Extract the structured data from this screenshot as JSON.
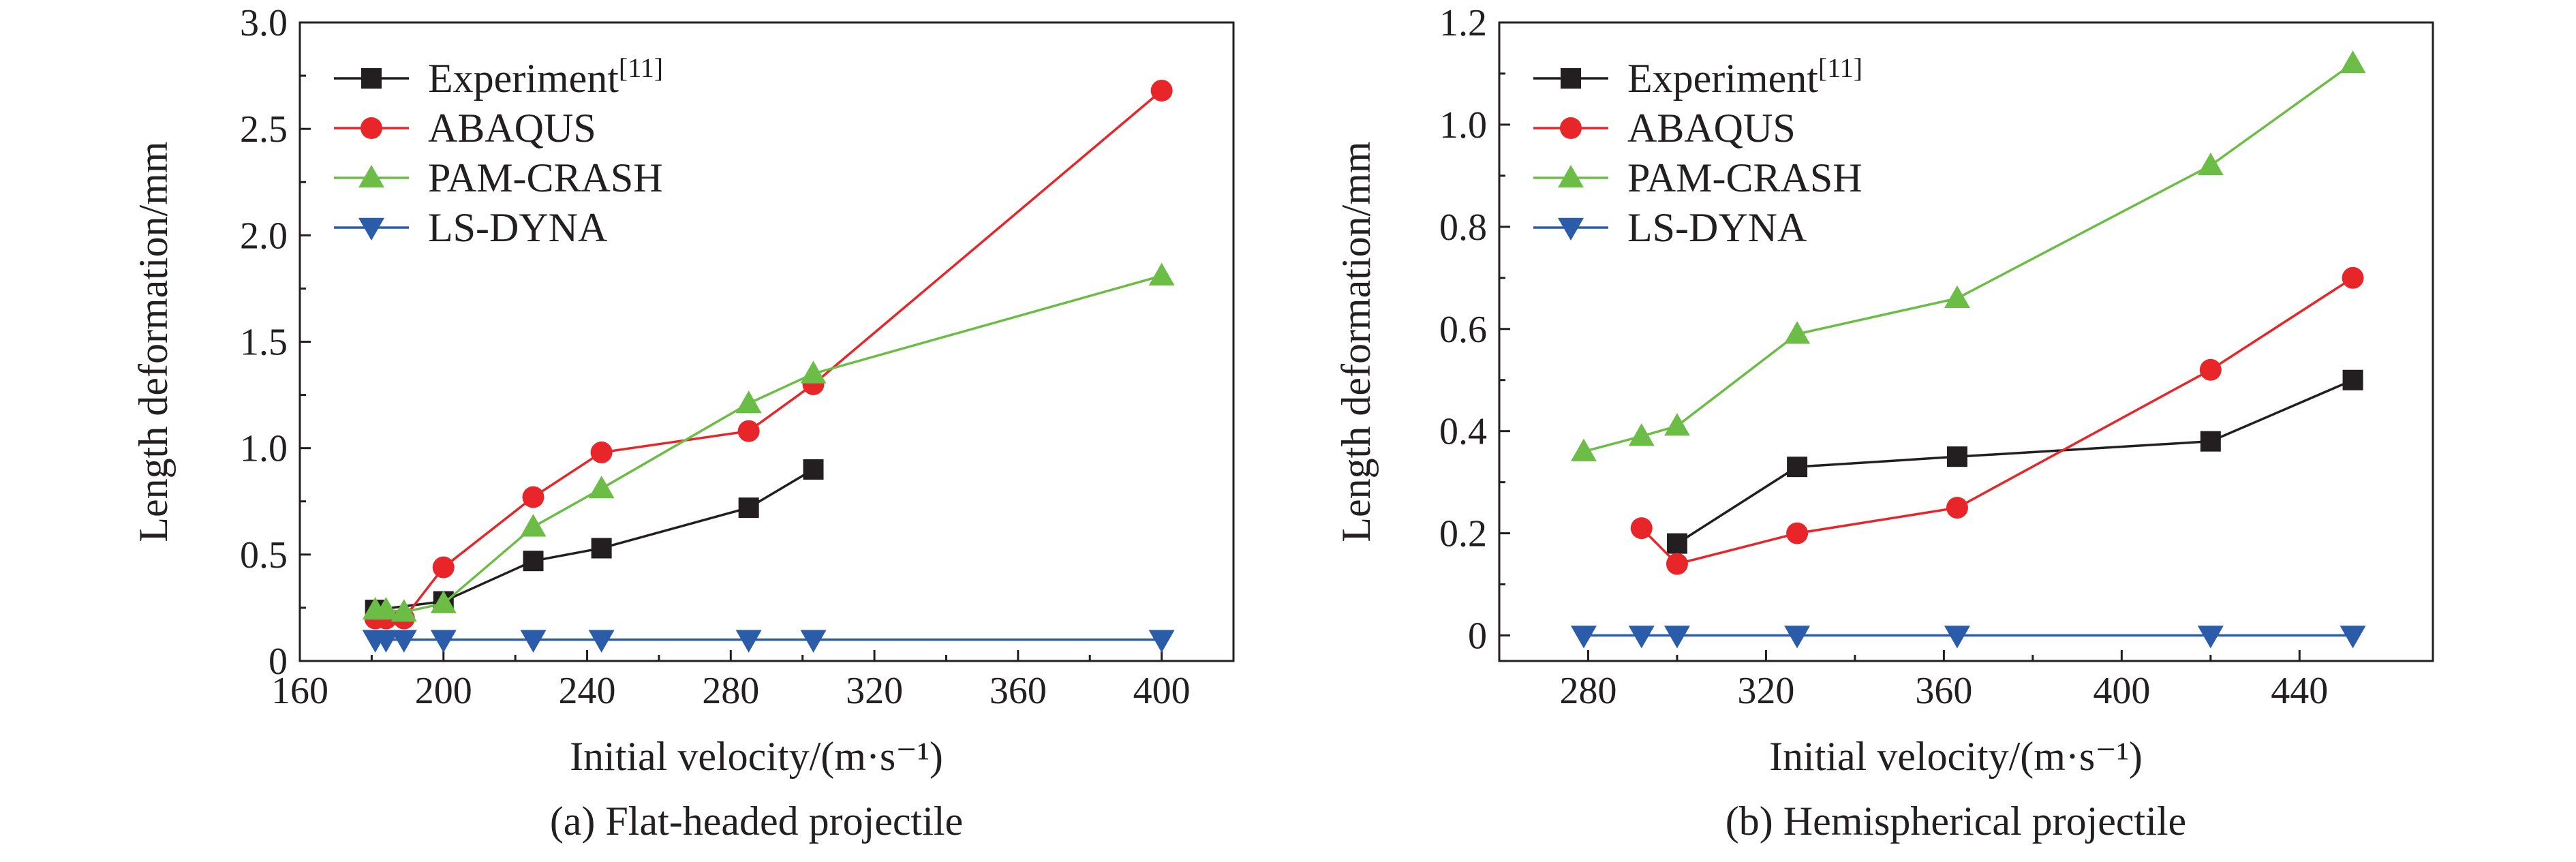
{
  "colors": {
    "Experiment": "#231f20",
    "ABAQUS": "#e8262a",
    "PAM-CRASH": "#6cbd45",
    "LS-DYNA": "#2b5caa"
  },
  "markers": {
    "Experiment": "square",
    "ABAQUS": "circle",
    "PAM-CRASH": "triangle-up",
    "LS-DYNA": "triangle-down"
  },
  "chart_data": [
    {
      "type": "line",
      "caption": "(a) Flat-headed projectile",
      "xlabel": "Initial velocity/(m·s⁻¹)",
      "ylabel": "Length deformation/mm",
      "xlim": [
        160,
        420
      ],
      "ylim": [
        0,
        3.0
      ],
      "xticks": [
        160,
        200,
        240,
        280,
        320,
        360,
        400
      ],
      "yticks": [
        0,
        0.5,
        1.0,
        1.5,
        2.0,
        2.5,
        3.0
      ],
      "ytick_labels": [
        "0",
        "0.5",
        "1.0",
        "1.5",
        "2.0",
        "2.5",
        "3.0"
      ],
      "legend": "top-left",
      "series": [
        {
          "name": "Experiment",
          "sup": "[11]",
          "x": [
            181,
            200,
            225,
            244,
            285,
            303
          ],
          "y": [
            0.24,
            0.28,
            0.47,
            0.53,
            0.72,
            0.9
          ]
        },
        {
          "name": "ABAQUS",
          "sup": "",
          "x": [
            181,
            184,
            189,
            200,
            225,
            244,
            285,
            303,
            400
          ],
          "y": [
            0.2,
            0.2,
            0.2,
            0.44,
            0.77,
            0.98,
            1.08,
            1.3,
            2.68
          ]
        },
        {
          "name": "PAM-CRASH",
          "sup": "",
          "x": [
            181,
            184,
            189,
            200,
            225,
            244,
            285,
            303,
            400
          ],
          "y": [
            0.24,
            0.24,
            0.23,
            0.27,
            0.63,
            0.81,
            1.21,
            1.35,
            1.81
          ]
        },
        {
          "name": "LS-DYNA",
          "sup": "",
          "x": [
            181,
            184,
            189,
            200,
            225,
            244,
            285,
            303,
            400
          ],
          "y": [
            0.1,
            0.1,
            0.1,
            0.1,
            0.1,
            0.1,
            0.1,
            0.1,
            0.1
          ]
        }
      ]
    },
    {
      "type": "line",
      "caption": "(b) Hemispherical projectile",
      "xlabel": "Initial velocity/(m·s⁻¹)",
      "ylabel": "Length deformation/mm",
      "xlim": [
        260,
        470
      ],
      "ylim": [
        -0.05,
        1.2
      ],
      "xticks": [
        280,
        320,
        360,
        400,
        440
      ],
      "yticks": [
        0,
        0.2,
        0.4,
        0.6,
        0.8,
        1.0,
        1.2
      ],
      "ytick_labels": [
        "0",
        "0.2",
        "0.4",
        "0.6",
        "0.8",
        "1.0",
        "1.2"
      ],
      "legend": "top-left",
      "series": [
        {
          "name": "Experiment",
          "sup": "[11]",
          "x": [
            300,
            327,
            363,
            420,
            452
          ],
          "y": [
            0.18,
            0.33,
            0.35,
            0.38,
            0.5
          ]
        },
        {
          "name": "ABAQUS",
          "sup": "",
          "x": [
            292,
            300,
            327,
            363,
            420,
            452
          ],
          "y": [
            0.21,
            0.14,
            0.2,
            0.25,
            0.52,
            0.7
          ]
        },
        {
          "name": "PAM-CRASH",
          "sup": "",
          "x": [
            279,
            292,
            300,
            327,
            363,
            420,
            452
          ],
          "y": [
            0.36,
            0.39,
            0.41,
            0.59,
            0.66,
            0.92,
            1.12
          ]
        },
        {
          "name": "LS-DYNA",
          "sup": "",
          "x": [
            279,
            292,
            300,
            327,
            363,
            420,
            452
          ],
          "y": [
            0,
            0,
            0,
            0,
            0,
            0,
            0
          ]
        }
      ]
    }
  ]
}
